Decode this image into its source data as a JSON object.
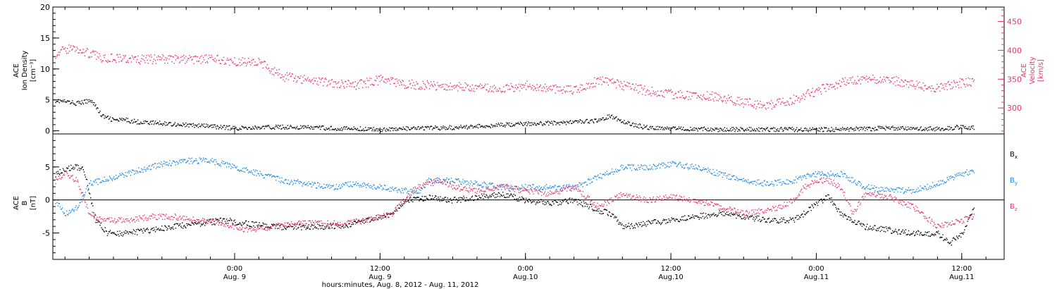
{
  "colors": {
    "black": "#000000",
    "red": "#e8356a",
    "blue": "#1e88e5"
  },
  "x_axis": {
    "range_hours": [
      -15,
      63.5
    ],
    "ticks": [
      {
        "hours": 0,
        "time": "0:00",
        "date": "Aug. 9"
      },
      {
        "hours": 12,
        "time": "12:00",
        "date": "Aug. 9"
      },
      {
        "hours": 24,
        "time": "0:00",
        "date": "Aug.10"
      },
      {
        "hours": 36,
        "time": "12:00",
        "date": "Aug.10"
      },
      {
        "hours": 48,
        "time": "0:00",
        "date": "Aug.11"
      },
      {
        "hours": 60,
        "time": "12:00",
        "date": "Aug.11"
      }
    ],
    "label": "hours:minutes, Aug.  8, 2012 - Aug. 11, 2012"
  },
  "chart_data": [
    {
      "type": "scatter",
      "panel": "top",
      "ylabel_left": [
        "ACE",
        "Ion Density",
        "[cm⁻³]"
      ],
      "ylabel_right": [
        "ACE",
        "Velocity",
        "[km/s]"
      ],
      "ylim_left": [
        -0.5,
        20
      ],
      "yticks_left": [
        "0",
        "5",
        "10",
        "15",
        "20"
      ],
      "ylim_right": [
        255,
        475
      ],
      "yticks_right": [
        "300",
        "350",
        "400",
        "450"
      ],
      "series": [
        {
          "key": "density",
          "axis": "left",
          "color": "#000000",
          "x": [
            -14.8,
            -13,
            -11.8,
            -11,
            -10,
            -9,
            -8,
            -6,
            -4,
            -2,
            0,
            2,
            4,
            6,
            8,
            10,
            12,
            14,
            16,
            18,
            20,
            22,
            24,
            26,
            28,
            30,
            31,
            32,
            33,
            34,
            36,
            38,
            40,
            42,
            44,
            46,
            48,
            50,
            52,
            54,
            56,
            58,
            60,
            61
          ],
          "y": [
            5,
            4.5,
            5,
            2.5,
            1.8,
            1.8,
            1.5,
            1.3,
            1.0,
            0.8,
            0.5,
            0.6,
            0.7,
            0.6,
            0.5,
            0.4,
            0.3,
            0.4,
            0.5,
            0.6,
            0.8,
            1.0,
            1.2,
            1.3,
            1.5,
            1.7,
            2.5,
            1.6,
            1.0,
            0.6,
            0.5,
            0.4,
            0.3,
            0.3,
            0.3,
            0.3,
            0.3,
            0.3,
            0.4,
            0.5,
            0.4,
            0.4,
            0.7,
            0.6
          ]
        },
        {
          "key": "velocity",
          "axis": "right",
          "color": "#e8356a",
          "x": [
            -14.8,
            -13.5,
            -12,
            -11,
            -10,
            -8,
            -6,
            -4,
            -2,
            0,
            2,
            4,
            6,
            8,
            10,
            12,
            14,
            16,
            18,
            20,
            22,
            24,
            26,
            28,
            30,
            32,
            34,
            36,
            38,
            40,
            42,
            44,
            46,
            48,
            50,
            52,
            54,
            56,
            58,
            60,
            61
          ],
          "y": [
            395,
            405,
            395,
            388,
            388,
            384,
            386,
            385,
            385,
            382,
            380,
            355,
            350,
            345,
            340,
            350,
            342,
            340,
            338,
            335,
            334,
            340,
            335,
            332,
            348,
            340,
            330,
            325,
            322,
            320,
            310,
            305,
            315,
            330,
            345,
            350,
            350,
            340,
            335,
            345,
            345
          ]
        }
      ]
    },
    {
      "type": "scatter",
      "panel": "bottom",
      "ylabel": [
        "ACE",
        "B",
        "[nT]"
      ],
      "ylim": [
        -9,
        10
      ],
      "yticks": [
        "-5",
        "0",
        "5"
      ],
      "series": [
        {
          "key": "bx",
          "name": "Bx",
          "color": "#000000",
          "x": [
            -14.8,
            -13.5,
            -12.5,
            -11.5,
            -10.5,
            -9,
            -7,
            -5,
            -3,
            -1,
            1,
            3,
            5,
            7,
            9,
            10,
            11,
            13,
            14,
            16,
            18,
            20,
            22,
            24,
            26,
            28,
            30,
            31,
            32,
            34,
            36,
            38,
            40,
            42,
            44,
            46,
            47,
            48,
            49,
            50,
            52,
            54,
            56,
            58,
            59,
            60,
            61
          ],
          "y": [
            4,
            5,
            5,
            -3,
            -5,
            -5,
            -4.5,
            -4,
            -3.5,
            -3,
            -3.5,
            -4,
            -4,
            -4,
            -3.8,
            -3.5,
            -3,
            -2,
            0,
            0.5,
            0,
            0.5,
            1,
            0,
            -0.5,
            0,
            -1.5,
            -2,
            -4,
            -3.5,
            -3,
            -2.5,
            -2,
            -2.5,
            -3,
            -3,
            -2,
            -0.5,
            0.5,
            -2,
            -4,
            -4.5,
            -5,
            -5,
            -6.5,
            -5,
            -1
          ]
        },
        {
          "key": "by",
          "name": "By",
          "color": "#1e88e5",
          "x": [
            -14.8,
            -14,
            -13,
            -12,
            -10,
            -8,
            -6,
            -4,
            -2,
            0,
            2,
            4,
            6,
            8,
            10,
            12,
            14,
            15,
            16,
            18,
            20,
            22,
            24,
            26,
            28,
            30,
            32,
            34,
            36,
            38,
            40,
            42,
            44,
            46,
            48,
            50,
            52,
            54,
            56,
            58,
            60,
            61
          ],
          "y": [
            0,
            -2,
            -1,
            2.5,
            3.5,
            4.5,
            5.5,
            6,
            6,
            5,
            4,
            3,
            2.5,
            2,
            2.5,
            2,
            1.5,
            1,
            3,
            3,
            2.5,
            2,
            2,
            2,
            2,
            3.5,
            5,
            5,
            5.5,
            5,
            4,
            3,
            2.5,
            3,
            4,
            4,
            2,
            1.5,
            1.5,
            2.5,
            4,
            4.5
          ]
        },
        {
          "key": "bz",
          "name": "Bz",
          "color": "#e8356a",
          "x": [
            -14.8,
            -14,
            -13,
            -12,
            -11,
            -9,
            -7,
            -5,
            -3,
            -1,
            1,
            3,
            5,
            7,
            9,
            11,
            12,
            13,
            14,
            15,
            16,
            17,
            18,
            20,
            22,
            24,
            26,
            28,
            30,
            32,
            33,
            34,
            36,
            38,
            40,
            42,
            44,
            45,
            46,
            47,
            48,
            49,
            50,
            51,
            52,
            54,
            56,
            58,
            59,
            60,
            61
          ],
          "y": [
            3,
            4,
            3,
            -2,
            -3,
            -3,
            -2.5,
            -2.5,
            -3,
            -3.5,
            -4.5,
            -4,
            -3.5,
            -3.5,
            -3.5,
            -3,
            -2.5,
            -2,
            0,
            2,
            2.5,
            3,
            2,
            1.5,
            2,
            1.5,
            1,
            2,
            -1,
            1,
            0.5,
            0,
            0.5,
            0,
            -1,
            -2,
            -1.5,
            -1,
            0,
            2,
            3,
            3,
            2,
            -2,
            1,
            0.5,
            -1,
            -4,
            -3.5,
            -3,
            -2.5
          ]
        }
      ],
      "legend": [
        {
          "key": "bx",
          "base": "B",
          "sub": "x",
          "color": "#000000"
        },
        {
          "key": "by",
          "base": "B",
          "sub": "y",
          "color": "#1e88e5"
        },
        {
          "key": "bz",
          "base": "B",
          "sub": "z",
          "color": "#e8356a"
        }
      ]
    }
  ]
}
